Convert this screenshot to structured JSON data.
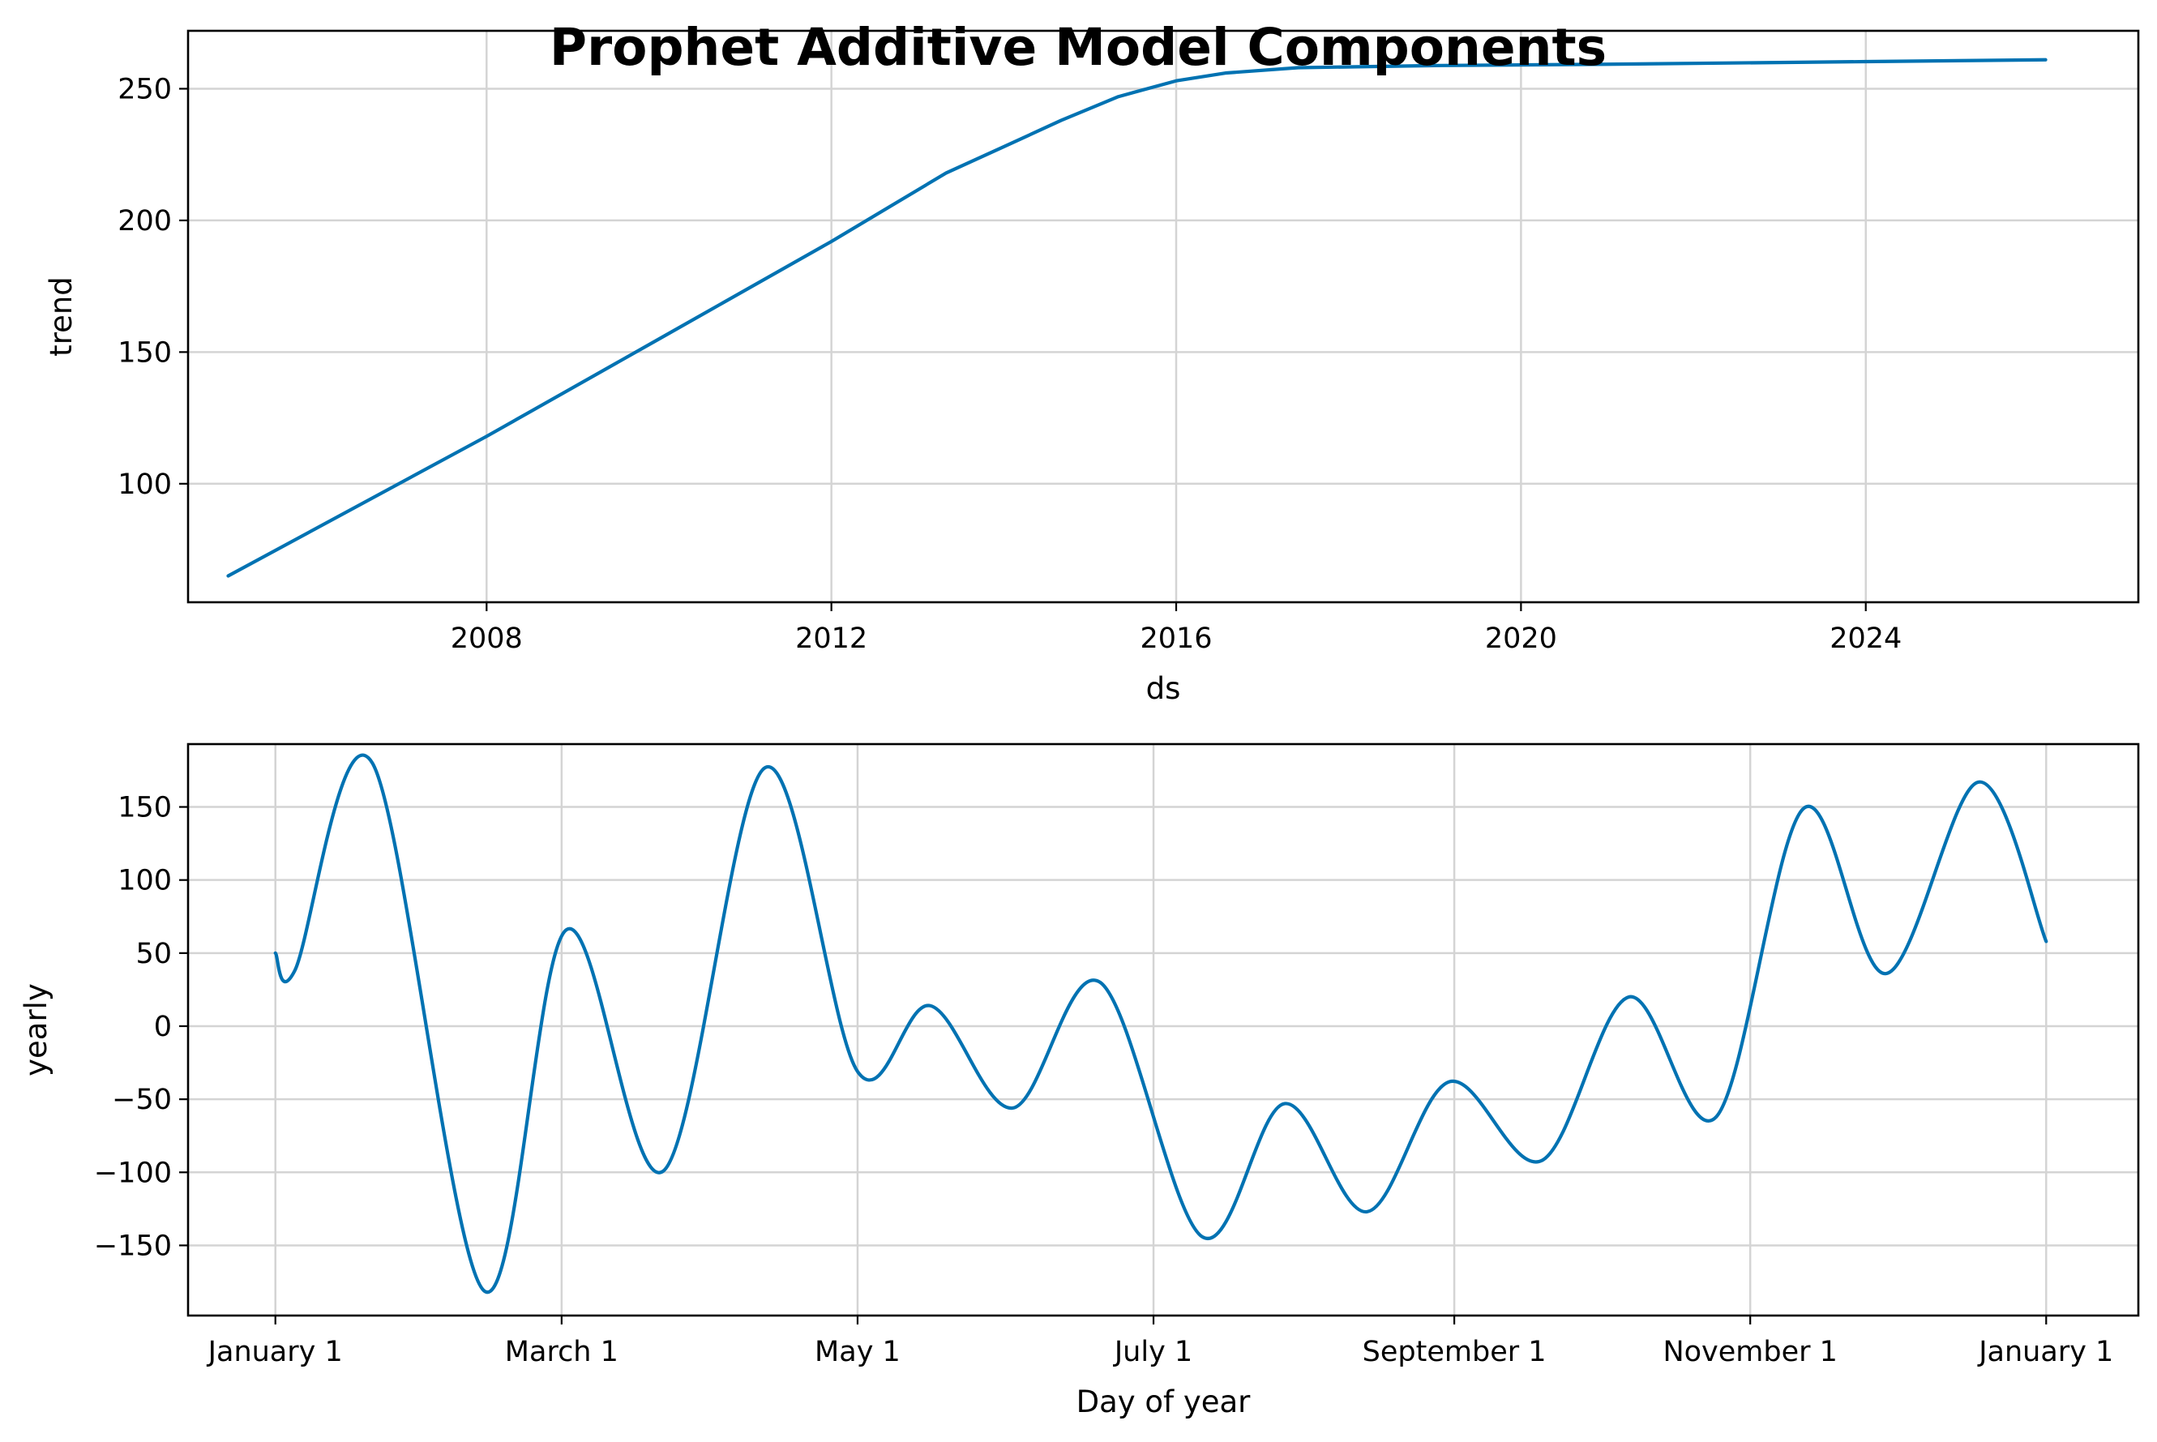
{
  "figure": {
    "title": "Prophet Additive Model Components",
    "line_color": "#0072B2",
    "grid_color": "#d4d4d4"
  },
  "chart_data": [
    {
      "type": "line",
      "name": "trend-panel",
      "xlabel": "ds",
      "ylabel": "trend",
      "x_type": "date",
      "xlim": [
        "2004-07-15",
        "2027-03-01"
      ],
      "ylim": [
        55,
        272
      ],
      "xticks": [
        {
          "value": "2008-01-01",
          "label": "2008"
        },
        {
          "value": "2012-01-01",
          "label": "2012"
        },
        {
          "value": "2016-01-01",
          "label": "2016"
        },
        {
          "value": "2020-01-01",
          "label": "2020"
        },
        {
          "value": "2024-01-01",
          "label": "2024"
        }
      ],
      "yticks": [
        {
          "value": 100,
          "label": "100"
        },
        {
          "value": 150,
          "label": "150"
        },
        {
          "value": 200,
          "label": "200"
        },
        {
          "value": 250,
          "label": "250"
        }
      ],
      "grid": true,
      "series": [
        {
          "x": [
            "2005-01-01",
            "2008-01-01",
            "2010-01-01",
            "2012-01-01",
            "2013-05-01",
            "2014-01-01",
            "2014-09-01",
            "2015-05-01",
            "2016-01-01",
            "2016-08-01",
            "2017-06-01",
            "2019-01-01",
            "2021-01-01",
            "2024-01-01",
            "2026-02-01"
          ],
          "y": [
            65,
            118,
            155,
            192,
            218,
            228,
            238,
            247,
            253,
            256,
            258,
            258.8,
            259.3,
            260.3,
            261
          ]
        }
      ]
    },
    {
      "type": "line",
      "name": "yearly-panel",
      "xlabel": "Day of year",
      "ylabel": "yearly",
      "x_type": "day",
      "xlim": [
        -18,
        384
      ],
      "ylim": [
        -198,
        193
      ],
      "xticks": [
        {
          "value": 0,
          "label": "January 1"
        },
        {
          "value": 59,
          "label": "March 1"
        },
        {
          "value": 120,
          "label": "May 1"
        },
        {
          "value": 181,
          "label": "July 1"
        },
        {
          "value": 243,
          "label": "September 1"
        },
        {
          "value": 304,
          "label": "November 1"
        },
        {
          "value": 365,
          "label": "January 1"
        }
      ],
      "yticks": [
        {
          "value": -150,
          "label": "−150"
        },
        {
          "value": -100,
          "label": "−100"
        },
        {
          "value": -50,
          "label": "−50"
        },
        {
          "value": 0,
          "label": "0"
        },
        {
          "value": 50,
          "label": "50"
        },
        {
          "value": 100,
          "label": "100"
        },
        {
          "value": 150,
          "label": "150"
        }
      ],
      "grid": true,
      "series": [
        {
          "x": [
            0,
            4,
            20,
            43,
            60,
            80,
            101,
            120,
            135,
            152,
            170,
            191,
            208,
            225,
            242,
            261,
            279,
            297,
            315,
            332,
            351,
            365
          ],
          "y": [
            50,
            38,
            180,
            -181,
            66,
            -99,
            177,
            -31,
            14,
            -56,
            30,
            -144,
            -53,
            -127,
            -38,
            -92,
            20,
            -62,
            149,
            36,
            167,
            58
          ]
        }
      ]
    }
  ]
}
